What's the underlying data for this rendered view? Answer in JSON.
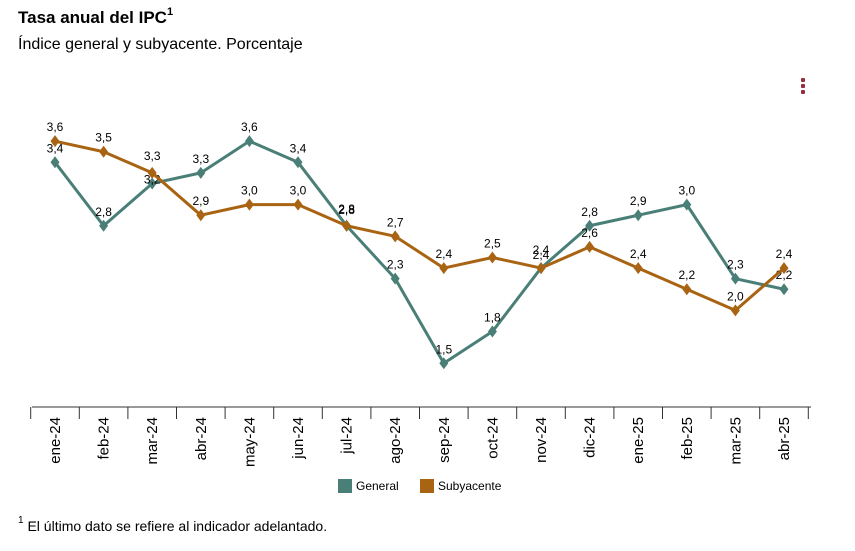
{
  "header": {
    "title": "Tasa anual del IPC",
    "title_sup": "1",
    "subtitle": "Índice general y subyacente. Porcentaje"
  },
  "menu": {
    "icon": "kebab-menu-icon"
  },
  "footnote": {
    "sup": "1",
    "text": "El último dato se refiere al indicador adelantado."
  },
  "chart_data": {
    "type": "line",
    "title": "Tasa anual del IPC",
    "categories": [
      "ene-24",
      "feb-24",
      "mar-24",
      "abr-24",
      "may-24",
      "jun-24",
      "jul-24",
      "ago-24",
      "sep-24",
      "oct-24",
      "nov-24",
      "dic-24",
      "ene-25",
      "feb-25",
      "mar-25",
      "abr-25"
    ],
    "series": [
      {
        "name": "General",
        "color": "#4a7f78",
        "values": [
          3.4,
          2.8,
          3.2,
          3.3,
          3.6,
          3.4,
          2.8,
          2.3,
          1.5,
          1.8,
          2.4,
          2.8,
          2.9,
          3.0,
          2.3,
          2.2
        ],
        "labels": [
          "3,4",
          "2,8",
          "3,2",
          "3,3",
          "3,6",
          "3,4",
          "2,8",
          "2,3",
          "1,5",
          "1,8",
          "2,4",
          "2,8",
          "2,9",
          "3,0",
          "2,3",
          "2,2"
        ]
      },
      {
        "name": "Subyacente",
        "color": "#a86412",
        "values": [
          3.6,
          3.5,
          3.3,
          2.9,
          3.0,
          3.0,
          2.8,
          2.7,
          2.4,
          2.5,
          2.4,
          2.6,
          2.4,
          2.2,
          2.0,
          2.4
        ],
        "labels": [
          "3,6",
          "3,5",
          "3,3",
          "2,9",
          "3,0",
          "3,0",
          "2,8",
          "2,7",
          "2,4",
          "2,5",
          "2,4",
          "2,6",
          "2,4",
          "2,2",
          "2,0",
          "2,4"
        ]
      }
    ],
    "ylim": [
      1.2,
      3.8
    ],
    "xlabel": "",
    "ylabel": "",
    "legend": "bottom-center",
    "grid": false
  }
}
